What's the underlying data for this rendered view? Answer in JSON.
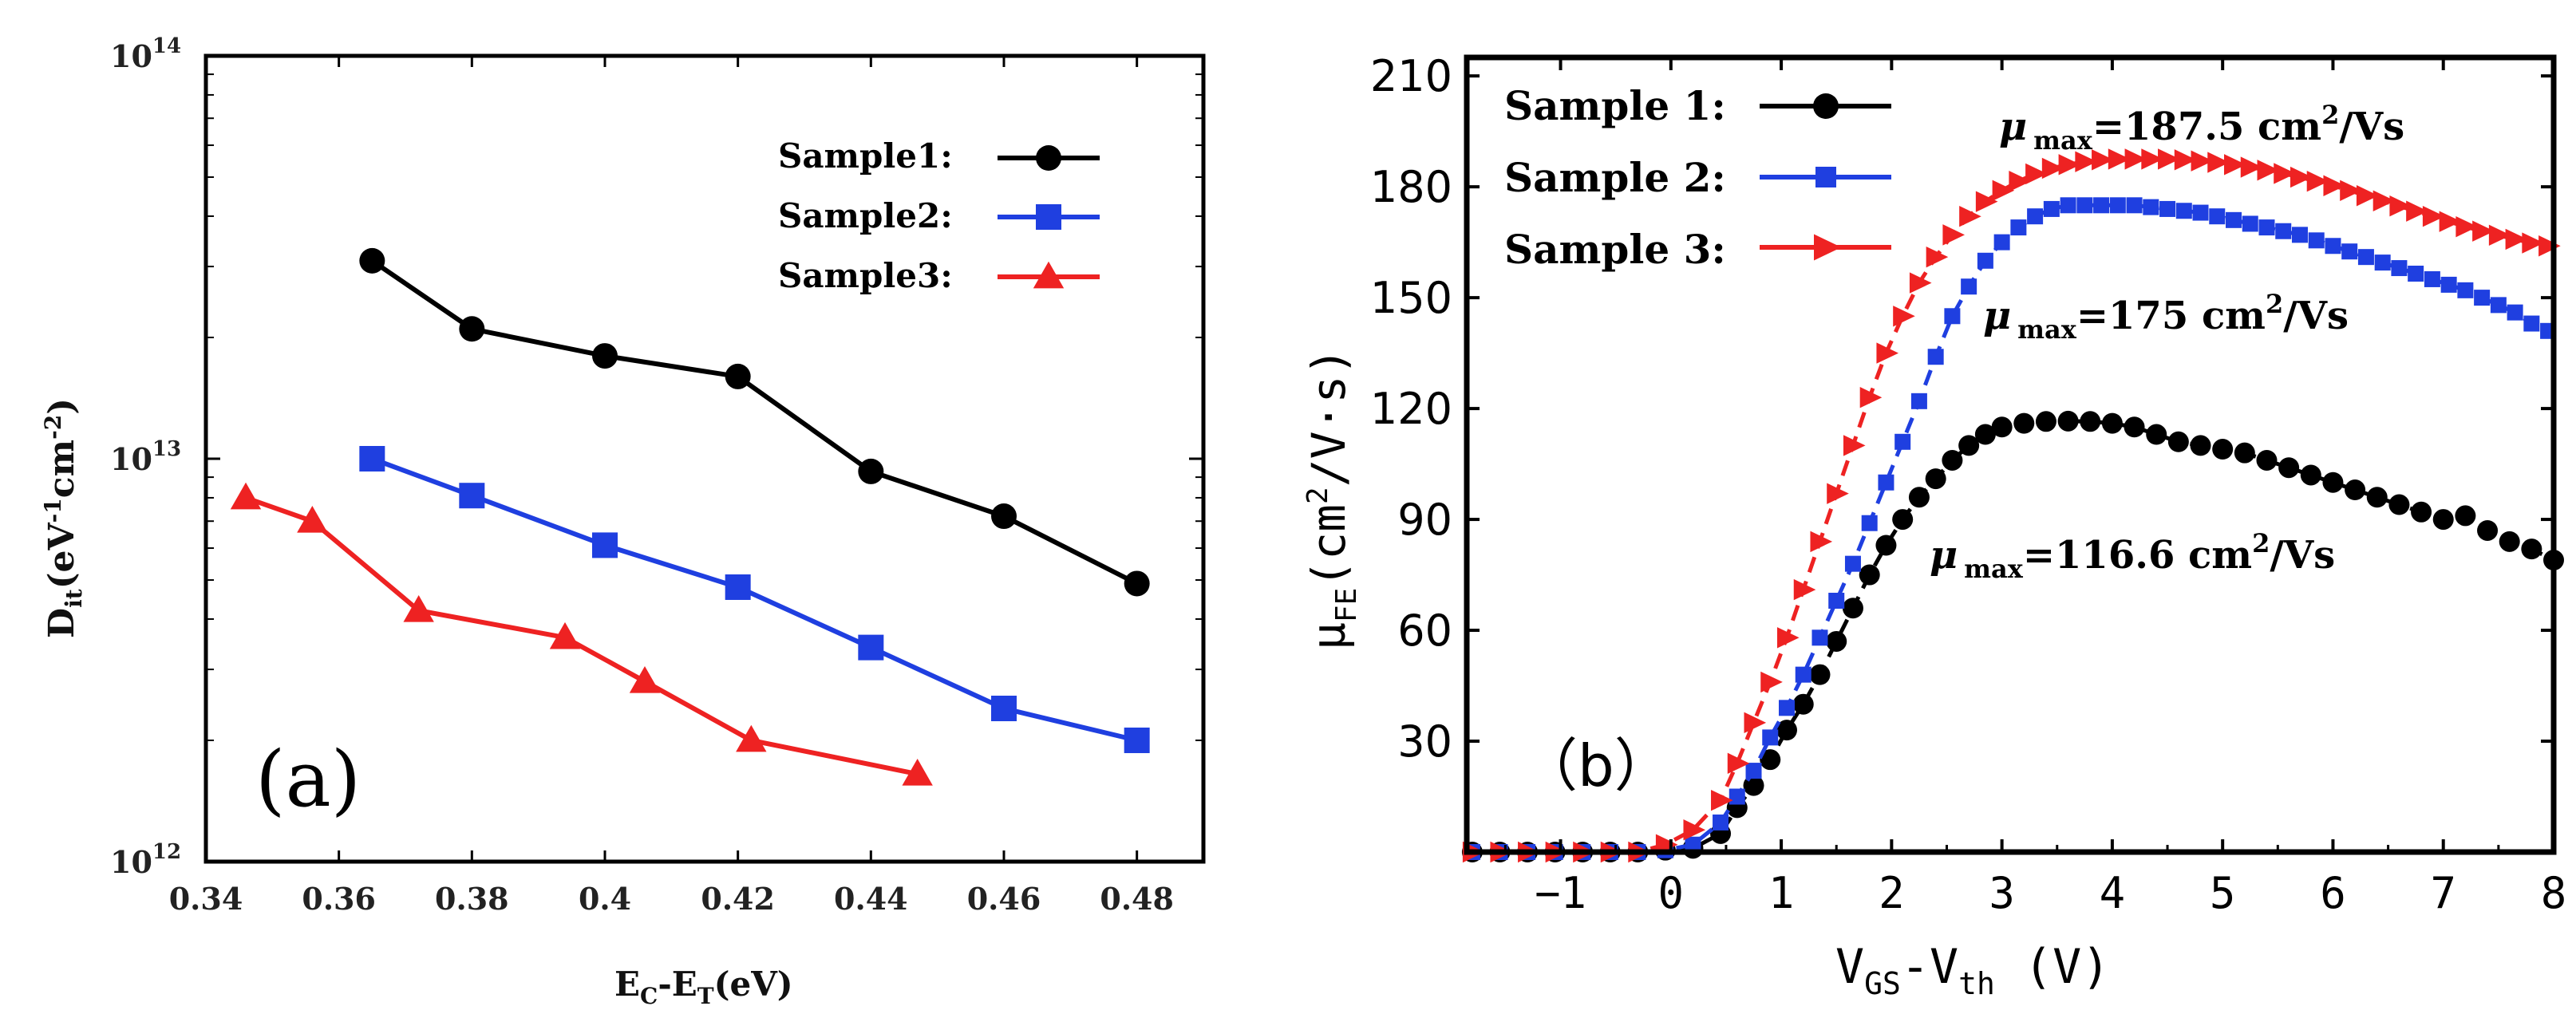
{
  "chart_data": [
    {
      "panel_label": "(a)",
      "type": "line",
      "yscale": "log",
      "xlabel": {
        "main": "E",
        "sub1": "C",
        "mid": "-E",
        "sub2": "T",
        "tail": "(eV)"
      },
      "ylabel": {
        "main": "D",
        "sub": "it",
        "mid": "(eV",
        "sup1": "-1",
        "mid2": "cm",
        "sup2": "-2",
        "tail": ")"
      },
      "xlim": [
        0.34,
        0.49
      ],
      "ylim": [
        1000000000000.0,
        100000000000000.0
      ],
      "xticks": [
        {
          "value": 0.34,
          "label": "0.34"
        },
        {
          "value": 0.36,
          "label": "0.36"
        },
        {
          "value": 0.38,
          "label": "0.38"
        },
        {
          "value": 0.4,
          "label": "0.4"
        },
        {
          "value": 0.42,
          "label": "0.42"
        },
        {
          "value": 0.44,
          "label": "0.44"
        },
        {
          "value": 0.46,
          "label": "0.46"
        },
        {
          "value": 0.48,
          "label": "0.48"
        }
      ],
      "yticks": [
        {
          "value": 1000000000000.0,
          "base": "10",
          "exp": "12"
        },
        {
          "value": 10000000000000.0,
          "base": "10",
          "exp": "13"
        },
        {
          "value": 100000000000000.0,
          "base": "10",
          "exp": "14"
        }
      ],
      "series": [
        {
          "name": "Sample1:",
          "color": "#000000",
          "marker": "circle",
          "x": [
            0.365,
            0.38,
            0.4,
            0.42,
            0.44,
            0.46,
            0.48
          ],
          "y": [
            31000000000000.0,
            21000000000000.0,
            18000000000000.0,
            16000000000000.0,
            9300000000000.0,
            7200000000000.0,
            4900000000000.0
          ]
        },
        {
          "name": "Sample2:",
          "color": "#1f3fe0",
          "marker": "square",
          "x": [
            0.365,
            0.38,
            0.4,
            0.42,
            0.44,
            0.46,
            0.48
          ],
          "y": [
            10000000000000.0,
            8100000000000.0,
            6100000000000.0,
            4800000000000.0,
            3400000000000.0,
            2400000000000.0,
            2000000000000.0
          ]
        },
        {
          "name": "Sample3:",
          "color": "#ee2222",
          "marker": "triangle-right",
          "x": [
            0.346,
            0.356,
            0.372,
            0.394,
            0.406,
            0.422,
            0.447
          ],
          "y": [
            8000000000000.0,
            7000000000000.0,
            4200000000000.0,
            3600000000000.0,
            2800000000000.0,
            2000000000000.0,
            1650000000000.0
          ]
        }
      ]
    },
    {
      "panel_label": "（b）",
      "type": "scatter-line",
      "xlabel": {
        "main": "V",
        "sub1": "GS",
        "mid": "-V",
        "sub2": "th",
        "tail": " (V)"
      },
      "ylabel": {
        "main": "μ",
        "sub": "FE",
        "mid": "(cm",
        "sup": "2",
        "tail": "/V·s)"
      },
      "xlim": [
        -1.85,
        8.0
      ],
      "ylim": [
        0,
        215
      ],
      "xticks": [
        {
          "value": -1,
          "label": "−1"
        },
        {
          "value": 0,
          "label": "0"
        },
        {
          "value": 1,
          "label": "1"
        },
        {
          "value": 2,
          "label": "2"
        },
        {
          "value": 3,
          "label": "3"
        },
        {
          "value": 4,
          "label": "4"
        },
        {
          "value": 5,
          "label": "5"
        },
        {
          "value": 6,
          "label": "6"
        },
        {
          "value": 7,
          "label": "7"
        },
        {
          "value": 8,
          "label": "8"
        }
      ],
      "yticks": [
        {
          "value": 30,
          "label": "30"
        },
        {
          "value": 60,
          "label": "60"
        },
        {
          "value": 90,
          "label": "90"
        },
        {
          "value": 120,
          "label": "120"
        },
        {
          "value": 150,
          "label": "150"
        },
        {
          "value": 180,
          "label": "180"
        },
        {
          "value": 210,
          "label": "210"
        }
      ],
      "series": [
        {
          "name": "Sample 1:",
          "color": "#000000",
          "marker": "circle",
          "dash": true,
          "x": [
            -1.8,
            -1.55,
            -1.3,
            -1.05,
            -0.8,
            -0.55,
            -0.3,
            -0.05,
            0.2,
            0.45,
            0.6,
            0.75,
            0.9,
            1.05,
            1.2,
            1.35,
            1.5,
            1.65,
            1.8,
            1.95,
            2.1,
            2.25,
            2.4,
            2.55,
            2.7,
            2.85,
            3.0,
            3.2,
            3.4,
            3.6,
            3.8,
            4.0,
            4.2,
            4.4,
            4.6,
            4.8,
            5.0,
            5.2,
            5.4,
            5.6,
            5.8,
            6.0,
            6.2,
            6.4,
            6.6,
            6.8,
            7.0,
            7.2,
            7.4,
            7.6,
            7.8,
            8.0
          ],
          "y": [
            0,
            0,
            0,
            0,
            0,
            0,
            0,
            0.5,
            1,
            5,
            12,
            18,
            25,
            33,
            40,
            48,
            57,
            66,
            75,
            83,
            90,
            96,
            101,
            106,
            110,
            113,
            115,
            116,
            116.5,
            116.6,
            116.5,
            116,
            115,
            113,
            111,
            110,
            109,
            108,
            106,
            104,
            102,
            100,
            98,
            96,
            94,
            92,
            90,
            91,
            87,
            84,
            82,
            79
          ]
        },
        {
          "name": "Sample 2:",
          "color": "#1f3fe0",
          "marker": "square",
          "dash": true,
          "x": [
            -1.8,
            -1.55,
            -1.3,
            -1.05,
            -0.8,
            -0.55,
            -0.3,
            -0.05,
            0.2,
            0.45,
            0.6,
            0.75,
            0.9,
            1.05,
            1.2,
            1.35,
            1.5,
            1.65,
            1.8,
            1.95,
            2.1,
            2.25,
            2.4,
            2.55,
            2.7,
            2.85,
            3.0,
            3.15,
            3.3,
            3.45,
            3.6,
            3.75,
            3.9,
            4.05,
            4.2,
            4.35,
            4.5,
            4.65,
            4.8,
            4.95,
            5.1,
            5.25,
            5.4,
            5.55,
            5.7,
            5.85,
            6.0,
            6.15,
            6.3,
            6.45,
            6.6,
            6.75,
            6.9,
            7.05,
            7.2,
            7.35,
            7.5,
            7.65,
            7.8,
            7.95
          ],
          "y": [
            0,
            0,
            0,
            0,
            0,
            0,
            0,
            0.5,
            2,
            8,
            15,
            22,
            31,
            39,
            48,
            58,
            68,
            78,
            89,
            100,
            111,
            122,
            134,
            145,
            153,
            160,
            165,
            169,
            172,
            174,
            175,
            175,
            175,
            175,
            175,
            174.5,
            174,
            173.5,
            173,
            172,
            171,
            170,
            169,
            168,
            167,
            165.5,
            164,
            162.5,
            161,
            159.5,
            158,
            156.5,
            155,
            153.5,
            152,
            150,
            148,
            146,
            143,
            141
          ]
        },
        {
          "name": "Sample 3:",
          "color": "#ee2222",
          "marker": "triangle-right",
          "dash": true,
          "x": [
            -1.8,
            -1.55,
            -1.3,
            -1.05,
            -0.8,
            -0.55,
            -0.3,
            -0.05,
            0.2,
            0.45,
            0.6,
            0.75,
            0.9,
            1.05,
            1.2,
            1.35,
            1.5,
            1.65,
            1.8,
            1.95,
            2.1,
            2.25,
            2.4,
            2.55,
            2.7,
            2.85,
            3.0,
            3.15,
            3.3,
            3.45,
            3.6,
            3.75,
            3.9,
            4.05,
            4.2,
            4.35,
            4.5,
            4.65,
            4.8,
            4.95,
            5.1,
            5.25,
            5.4,
            5.55,
            5.7,
            5.85,
            6.0,
            6.15,
            6.3,
            6.45,
            6.6,
            6.75,
            6.9,
            7.05,
            7.2,
            7.35,
            7.5,
            7.65,
            7.8,
            7.95
          ],
          "y": [
            0,
            0,
            0,
            0,
            0,
            0,
            0,
            2,
            6,
            14,
            24,
            35,
            46,
            58,
            71,
            84,
            97,
            110,
            123,
            135,
            145,
            154,
            161,
            167,
            172,
            176,
            179,
            181.5,
            183.5,
            185,
            186,
            186.8,
            187.3,
            187.5,
            187.5,
            187.5,
            187.5,
            187.3,
            187,
            186.6,
            186,
            185.3,
            184.5,
            183.6,
            182.6,
            181.5,
            180.3,
            179,
            177.6,
            176.2,
            174.8,
            173.4,
            172,
            170.6,
            169.2,
            168,
            166.9,
            165.8,
            164.8,
            164
          ]
        }
      ],
      "annotations": [
        {
          "mu": "μ",
          "sub": "max",
          "text": "=187.5 cm",
          "sup": "2",
          "tail": "/Vs"
        },
        {
          "mu": "μ",
          "sub": "max",
          "text": "=175 cm",
          "sup": "2",
          "tail": "/Vs"
        },
        {
          "mu": "μ",
          "sub": "max",
          "text": "=116.6 cm",
          "sup": "2",
          "tail": "/Vs"
        }
      ]
    }
  ]
}
